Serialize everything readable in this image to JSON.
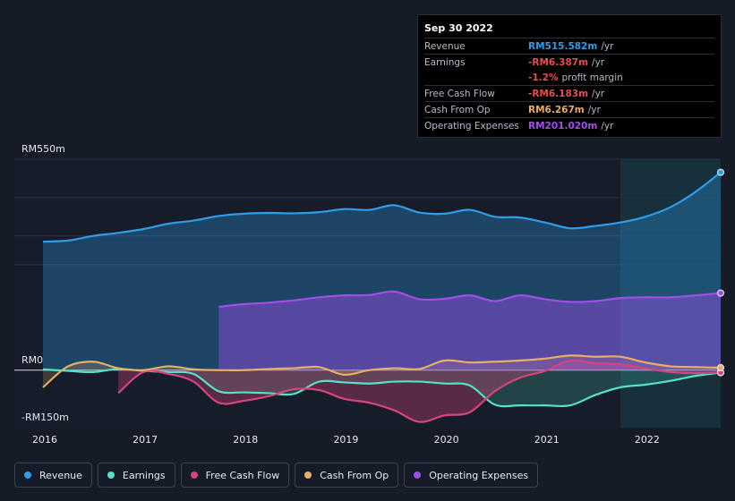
{
  "chart_data": {
    "type": "area",
    "currency_axis": {
      "top_label": "RM550m",
      "zero_label": "RM0",
      "bottom_label": "-RM150m"
    },
    "ylim": [
      -150,
      550
    ],
    "xlim": [
      2015.95,
      2022.75
    ],
    "x_ticks": [
      "2016",
      "2017",
      "2018",
      "2019",
      "2020",
      "2021",
      "2022"
    ],
    "highlight_start": 2021.75,
    "series": [
      {
        "name": "Revenue",
        "color": "#2e9ce8",
        "points": [
          [
            2016.0,
            335
          ],
          [
            2016.25,
            338
          ],
          [
            2016.5,
            350
          ],
          [
            2016.75,
            358
          ],
          [
            2017.0,
            368
          ],
          [
            2017.25,
            382
          ],
          [
            2017.5,
            390
          ],
          [
            2017.75,
            402
          ],
          [
            2018.0,
            408
          ],
          [
            2018.25,
            410
          ],
          [
            2018.5,
            409
          ],
          [
            2018.75,
            412
          ],
          [
            2019.0,
            420
          ],
          [
            2019.25,
            418
          ],
          [
            2019.5,
            430
          ],
          [
            2019.75,
            411
          ],
          [
            2020.0,
            408
          ],
          [
            2020.25,
            418
          ],
          [
            2020.5,
            400
          ],
          [
            2020.75,
            398
          ],
          [
            2021.0,
            385
          ],
          [
            2021.25,
            370
          ],
          [
            2021.5,
            376
          ],
          [
            2021.75,
            385
          ],
          [
            2022.0,
            400
          ],
          [
            2022.25,
            425
          ],
          [
            2022.5,
            465
          ],
          [
            2022.75,
            516
          ]
        ]
      },
      {
        "name": "Earnings",
        "color": "#54e1c8",
        "points": [
          [
            2016.0,
            2
          ],
          [
            2016.25,
            -2
          ],
          [
            2016.5,
            -5
          ],
          [
            2016.75,
            3
          ],
          [
            2017.0,
            -2
          ],
          [
            2017.25,
            -5
          ],
          [
            2017.5,
            -10
          ],
          [
            2017.75,
            -55
          ],
          [
            2018.0,
            -58
          ],
          [
            2018.25,
            -60
          ],
          [
            2018.5,
            -62
          ],
          [
            2018.75,
            -30
          ],
          [
            2019.0,
            -32
          ],
          [
            2019.25,
            -35
          ],
          [
            2019.5,
            -30
          ],
          [
            2019.75,
            -30
          ],
          [
            2020.0,
            -35
          ],
          [
            2020.25,
            -40
          ],
          [
            2020.5,
            -90
          ],
          [
            2020.75,
            -92
          ],
          [
            2021.0,
            -92
          ],
          [
            2021.25,
            -92
          ],
          [
            2021.5,
            -65
          ],
          [
            2021.75,
            -45
          ],
          [
            2022.0,
            -38
          ],
          [
            2022.25,
            -28
          ],
          [
            2022.5,
            -15
          ],
          [
            2022.75,
            -6.387
          ]
        ]
      },
      {
        "name": "Free Cash Flow",
        "color": "#d6447f",
        "points": [
          [
            2016.75,
            -60
          ],
          [
            2017.0,
            -5
          ],
          [
            2017.25,
            -10
          ],
          [
            2017.5,
            -30
          ],
          [
            2017.75,
            -85
          ],
          [
            2018.0,
            -80
          ],
          [
            2018.25,
            -68
          ],
          [
            2018.5,
            -50
          ],
          [
            2018.75,
            -52
          ],
          [
            2019.0,
            -75
          ],
          [
            2019.25,
            -85
          ],
          [
            2019.5,
            -105
          ],
          [
            2019.75,
            -135
          ],
          [
            2020.0,
            -118
          ],
          [
            2020.25,
            -110
          ],
          [
            2020.5,
            -55
          ],
          [
            2020.75,
            -20
          ],
          [
            2021.0,
            -2
          ],
          [
            2021.25,
            25
          ],
          [
            2021.5,
            18
          ],
          [
            2021.75,
            15
          ],
          [
            2022.0,
            5
          ],
          [
            2022.25,
            -5
          ],
          [
            2022.5,
            -8
          ],
          [
            2022.75,
            -6.183
          ]
        ]
      },
      {
        "name": "Cash From Op",
        "color": "#e8ad66",
        "points": [
          [
            2016.0,
            -45
          ],
          [
            2016.25,
            10
          ],
          [
            2016.5,
            22
          ],
          [
            2016.75,
            5
          ],
          [
            2017.0,
            0
          ],
          [
            2017.25,
            10
          ],
          [
            2017.5,
            2
          ],
          [
            2017.75,
            0
          ],
          [
            2018.0,
            0
          ],
          [
            2018.25,
            3
          ],
          [
            2018.5,
            5
          ],
          [
            2018.75,
            8
          ],
          [
            2019.0,
            -12
          ],
          [
            2019.25,
            0
          ],
          [
            2019.5,
            5
          ],
          [
            2019.75,
            3
          ],
          [
            2020.0,
            25
          ],
          [
            2020.25,
            20
          ],
          [
            2020.5,
            22
          ],
          [
            2020.75,
            25
          ],
          [
            2021.0,
            30
          ],
          [
            2021.25,
            38
          ],
          [
            2021.5,
            35
          ],
          [
            2021.75,
            35
          ],
          [
            2022.0,
            20
          ],
          [
            2022.25,
            10
          ],
          [
            2022.5,
            8
          ],
          [
            2022.75,
            6.267
          ]
        ]
      },
      {
        "name": "Operating Expenses",
        "color": "#a04ee8",
        "points": [
          [
            2017.75,
            165
          ],
          [
            2018.0,
            172
          ],
          [
            2018.25,
            176
          ],
          [
            2018.5,
            182
          ],
          [
            2018.75,
            190
          ],
          [
            2019.0,
            195
          ],
          [
            2019.25,
            196
          ],
          [
            2019.5,
            205
          ],
          [
            2019.75,
            185
          ],
          [
            2020.0,
            186
          ],
          [
            2020.25,
            195
          ],
          [
            2020.5,
            180
          ],
          [
            2020.75,
            195
          ],
          [
            2021.0,
            185
          ],
          [
            2021.25,
            178
          ],
          [
            2021.5,
            180
          ],
          [
            2021.75,
            188
          ],
          [
            2022.0,
            190
          ],
          [
            2022.25,
            190
          ],
          [
            2022.5,
            195
          ],
          [
            2022.75,
            201.02
          ]
        ]
      }
    ]
  },
  "tooltip": {
    "date": "Sep 30 2022",
    "rows": [
      {
        "label": "Revenue",
        "value": "RM515.582m",
        "unit": "/yr",
        "color": "#2e9ce8"
      },
      {
        "label": "Earnings",
        "value": "-RM6.387m",
        "unit": "/yr",
        "color": "#e64d4d"
      },
      {
        "label": "",
        "value": "-1.2%",
        "unit": "profit margin",
        "color": "#e64d4d"
      },
      {
        "label": "Free Cash Flow",
        "value": "-RM6.183m",
        "unit": "/yr",
        "color": "#e64d4d"
      },
      {
        "label": "Cash From Op",
        "value": "RM6.267m",
        "unit": "/yr",
        "color": "#e8ad66"
      },
      {
        "label": "Operating Expenses",
        "value": "RM201.020m",
        "unit": "/yr",
        "color": "#a04ee8"
      }
    ]
  },
  "legend": [
    {
      "label": "Revenue",
      "color": "#2e9ce8"
    },
    {
      "label": "Earnings",
      "color": "#54e1c8"
    },
    {
      "label": "Free Cash Flow",
      "color": "#d6447f"
    },
    {
      "label": "Cash From Op",
      "color": "#e8ad66"
    },
    {
      "label": "Operating Expenses",
      "color": "#a04ee8"
    }
  ]
}
